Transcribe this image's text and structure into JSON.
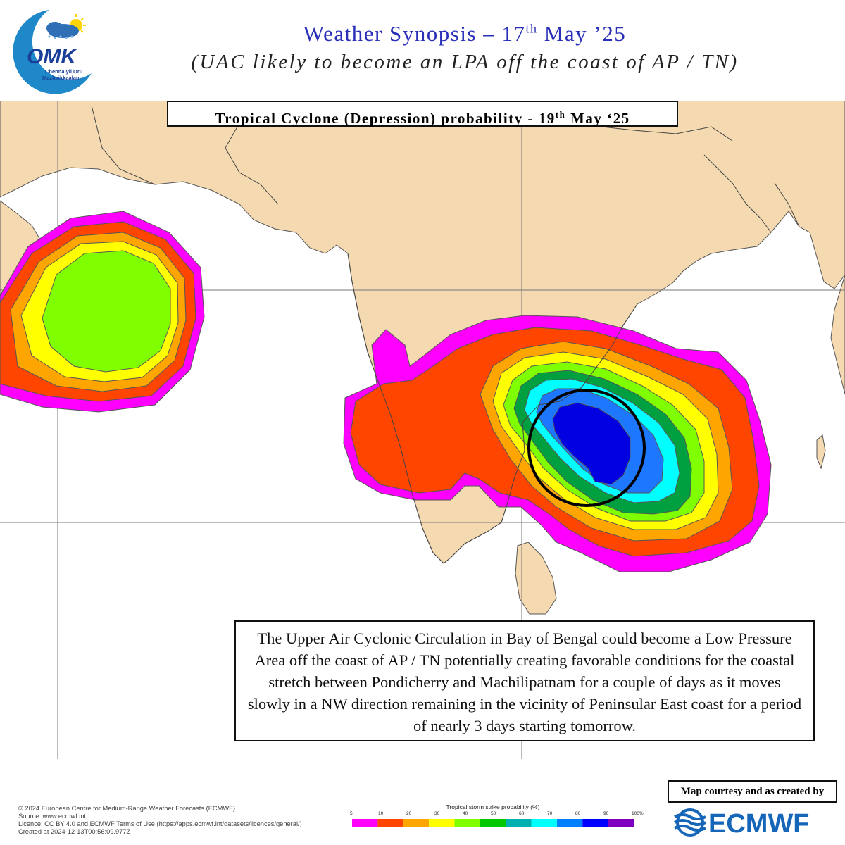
{
  "header": {
    "logo_text": "OMK",
    "logo_caption_1": "Chennaiyil Oru",
    "logo_caption_2": "Mazhaikkaalam",
    "title_prefix": "Weather Synopsis – 17",
    "title_sup": "th",
    "title_suffix": " May ’25",
    "subtitle": "(UAC likely to become an LPA off  the coast of  AP / TN)"
  },
  "map": {
    "label_prefix": "Tropical Cyclone (Depression) probability - 19",
    "label_sup": "th",
    "label_suffix": " May ‘25",
    "colors": {
      "land": "#f5d9b0",
      "sea": "#ffffff",
      "border": "#444444"
    },
    "highlight_circle": "black-circle-marker"
  },
  "synopsis": {
    "text": "The Upper Air Cyclonic Circulation in Bay of Bengal could become a Low Pressure Area off  the coast of  AP / TN potentially creating favorable conditions for the coastal stretch between Pondicherry and Machilipatnam for a couple of  days as it moves slowly in a NW direction remaining in the vicinity of Peninsular East coast for a period of  nearly 3 days starting tomorrow."
  },
  "legend": {
    "title": "Tropical storm strike probability (%)",
    "ticks": [
      "5",
      "10",
      "20",
      "30",
      "40",
      "50",
      "60",
      "70",
      "80",
      "90",
      "100%"
    ],
    "colors": [
      "#ff00ff",
      "#ff4500",
      "#ffa500",
      "#ffff00",
      "#80ff00",
      "#00c800",
      "#00b0b0",
      "#00ffff",
      "#0080ff",
      "#0000ff",
      "#8000c0"
    ]
  },
  "credits": {
    "line1": "© 2024 European Centre for Medium-Range Weather Forecasts (ECMWF)",
    "line2": "Source: www.ecmwf.int",
    "line3": "Licence: CC BY 4.0 and ECMWF Terms of Use (https://apps.ecmwf.int/datasets/licences/general/)",
    "line4": "Created at 2024-12-13T00:56:09.977Z"
  },
  "courtesy": {
    "label": "Map courtesy and  as created by",
    "brand": "ECMWF"
  }
}
